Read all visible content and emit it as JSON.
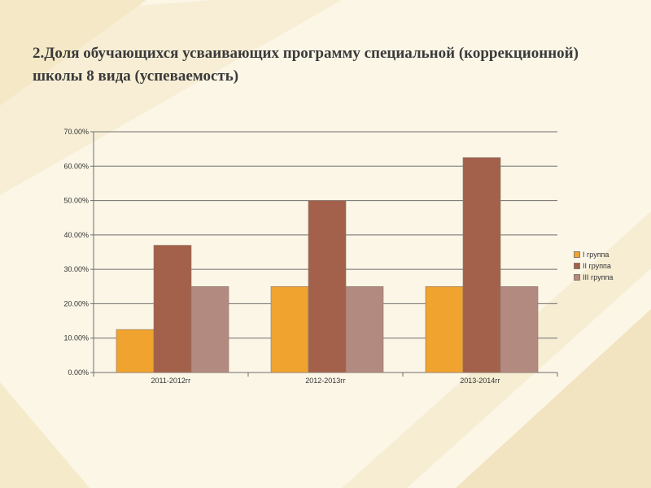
{
  "title": "2.Доля обучающихся усваивающих программу специальной (коррекционной) школы 8 вида (успеваемость)",
  "chart_data": {
    "type": "bar",
    "title": "",
    "xlabel": "",
    "ylabel": "",
    "categories": [
      "2011-2012гг",
      "2012-2013гг",
      "2013-2014гг"
    ],
    "series": [
      {
        "name": "I группа",
        "values": [
          12.5,
          25,
          25
        ],
        "color": "#f0a32e"
      },
      {
        "name": "II группа",
        "values": [
          37,
          50,
          62.5
        ],
        "color": "#a3604a"
      },
      {
        "name": "III группа",
        "values": [
          25,
          25,
          25
        ],
        "color": "#b38a80"
      }
    ],
    "ylim": [
      0,
      70
    ],
    "yticks": [
      "0.00%",
      "10.00%",
      "20.00%",
      "30.00%",
      "40.00%",
      "50.00%",
      "60.00%",
      "70.00%"
    ],
    "grid": true,
    "legend_position": "right"
  }
}
